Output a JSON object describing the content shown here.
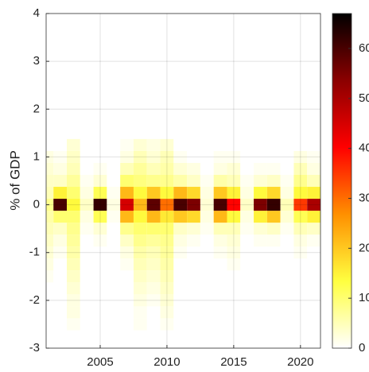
{
  "chart_data": {
    "type": "heatmap",
    "ylabel": "% of GDP",
    "x": [
      2001,
      2002,
      2003,
      2004,
      2005,
      2006,
      2007,
      2008,
      2009,
      2010,
      2011,
      2012,
      2013,
      2014,
      2015,
      2016,
      2017,
      2018,
      2019,
      2020,
      2021
    ],
    "y": [
      -2.5,
      -2.25,
      -2,
      -1.75,
      -1.5,
      -1.25,
      -1,
      -0.75,
      -0.5,
      -0.25,
      0,
      0.25,
      0.5,
      0.75,
      1,
      1.25
    ],
    "z": [
      [
        0,
        0,
        0,
        0,
        1,
        2,
        3,
        4,
        5,
        6,
        8,
        5,
        4,
        3,
        2,
        0
      ],
      [
        0,
        0,
        0,
        0,
        0,
        0,
        1,
        2,
        4,
        10,
        60,
        15,
        4,
        2,
        1,
        0
      ],
      [
        1,
        2,
        2,
        3,
        4,
        5,
        6,
        7,
        8,
        10,
        14,
        10,
        7,
        5,
        4,
        3
      ],
      [
        0,
        0,
        0,
        0,
        0,
        0,
        0,
        0,
        1,
        2,
        4,
        2,
        1,
        0,
        0,
        0
      ],
      [
        0,
        0,
        0,
        0,
        0,
        0,
        0,
        1,
        3,
        12,
        62,
        12,
        3,
        1,
        0,
        0
      ],
      [
        0,
        0,
        0,
        0,
        0,
        0,
        0,
        0,
        0,
        1,
        2,
        1,
        0,
        0,
        0,
        0
      ],
      [
        0,
        0,
        0,
        0,
        0,
        1,
        2,
        4,
        8,
        22,
        45,
        22,
        10,
        5,
        2,
        1
      ],
      [
        1,
        1,
        2,
        3,
        4,
        5,
        6,
        8,
        10,
        14,
        22,
        14,
        9,
        7,
        5,
        3
      ],
      [
        0,
        0,
        1,
        2,
        3,
        4,
        5,
        7,
        10,
        22,
        58,
        20,
        8,
        5,
        3,
        2
      ],
      [
        1,
        2,
        3,
        4,
        5,
        6,
        7,
        8,
        10,
        16,
        30,
        14,
        8,
        6,
        5,
        3
      ],
      [
        0,
        0,
        0,
        0,
        0,
        0,
        1,
        2,
        4,
        20,
        60,
        22,
        6,
        3,
        1,
        0
      ],
      [
        0,
        0,
        0,
        0,
        0,
        0,
        0,
        1,
        3,
        18,
        55,
        18,
        4,
        2,
        0,
        0
      ],
      [
        0,
        0,
        0,
        0,
        0,
        0,
        0,
        0,
        1,
        2,
        3,
        2,
        1,
        0,
        0,
        0
      ],
      [
        0,
        0,
        0,
        0,
        0,
        0,
        1,
        2,
        5,
        22,
        60,
        20,
        6,
        2,
        1,
        0
      ],
      [
        0,
        0,
        0,
        0,
        0,
        1,
        2,
        3,
        5,
        14,
        40,
        15,
        5,
        3,
        1,
        0
      ],
      [
        0,
        0,
        0,
        0,
        0,
        0,
        0,
        0,
        1,
        2,
        4,
        2,
        1,
        0,
        0,
        0
      ],
      [
        0,
        0,
        0,
        0,
        0,
        0,
        0,
        1,
        3,
        15,
        55,
        14,
        3,
        1,
        0,
        0
      ],
      [
        0,
        0,
        0,
        0,
        0,
        0,
        0,
        1,
        4,
        20,
        62,
        18,
        4,
        1,
        0,
        0
      ],
      [
        0,
        0,
        0,
        0,
        0,
        0,
        0,
        0,
        1,
        3,
        5,
        2,
        1,
        0,
        0,
        0
      ],
      [
        0,
        0,
        0,
        0,
        0,
        0,
        1,
        2,
        5,
        12,
        35,
        14,
        8,
        5,
        2,
        0
      ],
      [
        0,
        0,
        0,
        0,
        0,
        0,
        0,
        1,
        4,
        15,
        50,
        15,
        5,
        2,
        1,
        0
      ]
    ],
    "xlim": [
      2000.95,
      2021.5
    ],
    "ylim": [
      -3,
      4
    ],
    "xticks": [
      2005,
      2010,
      2015,
      2020
    ],
    "yticks": [
      -3,
      -2,
      -1,
      0,
      1,
      2,
      3,
      4
    ],
    "grid": true,
    "colorbar": {
      "lim": [
        0,
        67
      ],
      "ticks": [
        0,
        10,
        20,
        30,
        40,
        50,
        60
      ],
      "colors": [
        "#ffffff",
        "#ffff40",
        "#ff9000",
        "#ff0000",
        "#8b0000",
        "#000000"
      ]
    }
  }
}
